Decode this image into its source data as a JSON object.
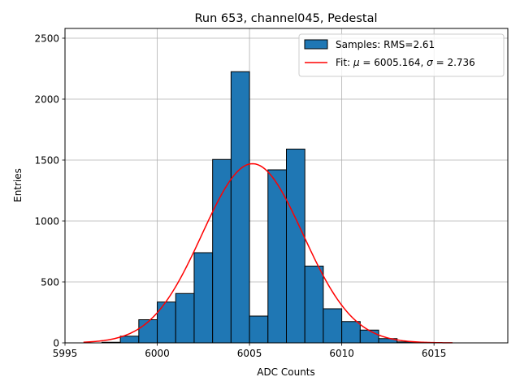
{
  "chart_data": {
    "type": "bar",
    "title": "Run 653, channel045, Pedestal",
    "xlabel": "ADC Counts",
    "ylabel": "Entries",
    "xlim": [
      5995,
      6019
    ],
    "ylim": [
      0,
      2580
    ],
    "xticks": [
      "5995",
      "6000",
      "6005",
      "6010",
      "6015"
    ],
    "yticks": [
      "0",
      "500",
      "1000",
      "1500",
      "2000",
      "2500"
    ],
    "grid": true,
    "legend_position": "top-right",
    "histogram": {
      "name": "Samples: RMS=2.61",
      "color": "#1f77b4",
      "edge_color": "#000000",
      "bins": [
        {
          "lo": 5996,
          "hi": 5997,
          "count": 0
        },
        {
          "lo": 5997,
          "hi": 5998,
          "count": 5
        },
        {
          "lo": 5998,
          "hi": 5999,
          "count": 55
        },
        {
          "lo": 5999,
          "hi": 6000,
          "count": 190
        },
        {
          "lo": 6000,
          "hi": 6001,
          "count": 335
        },
        {
          "lo": 6001,
          "hi": 6002,
          "count": 405
        },
        {
          "lo": 6002,
          "hi": 6003,
          "count": 740
        },
        {
          "lo": 6003,
          "hi": 6004,
          "count": 1505
        },
        {
          "lo": 6004,
          "hi": 6005,
          "count": 2225
        },
        {
          "lo": 6005,
          "hi": 6006,
          "count": 220
        },
        {
          "lo": 6006,
          "hi": 6007,
          "count": 1420
        },
        {
          "lo": 6007,
          "hi": 6008,
          "count": 1590
        },
        {
          "lo": 6008,
          "hi": 6009,
          "count": 630
        },
        {
          "lo": 6009,
          "hi": 6010,
          "count": 280
        },
        {
          "lo": 6010,
          "hi": 6011,
          "count": 175
        },
        {
          "lo": 6011,
          "hi": 6012,
          "count": 105
        },
        {
          "lo": 6012,
          "hi": 6013,
          "count": 35
        },
        {
          "lo": 6013,
          "hi": 6014,
          "count": 8
        },
        {
          "lo": 6014,
          "hi": 6015,
          "count": 2
        }
      ]
    },
    "fit": {
      "name": "Fit: μ = 6005.164, σ = 2.736",
      "name_prefix": "Fit: ",
      "mu_symbol": "μ",
      "mu_value": " = 6005.164, ",
      "sigma_symbol": "σ",
      "sigma_value": " = 2.736",
      "color": "#ff0000",
      "mu": 6005.164,
      "sigma": 2.736,
      "amplitude": 1470,
      "x_range": [
        5996,
        6016
      ]
    }
  }
}
